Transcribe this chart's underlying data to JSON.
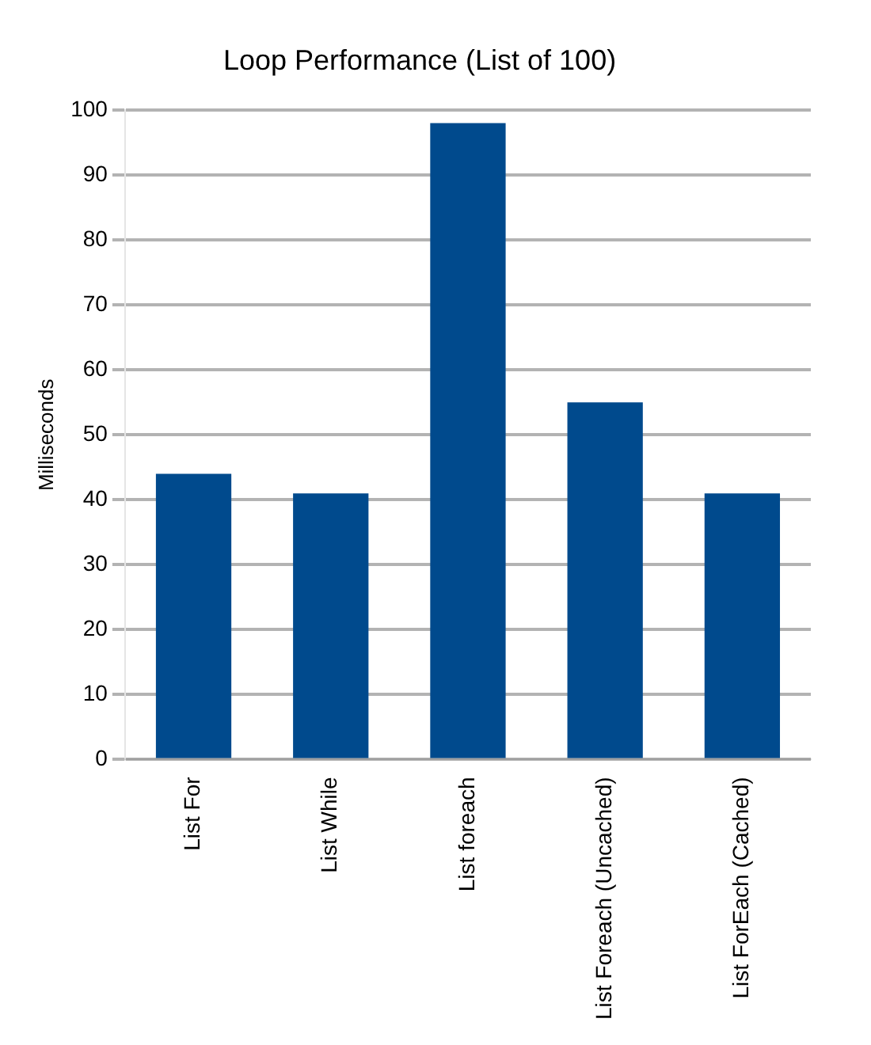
{
  "chart_data": {
    "type": "bar",
    "title": "Loop Performance (List of 100)",
    "ylabel": "Milliseconds",
    "categories": [
      "List For",
      "List While",
      "List foreach",
      "List Foreach (Uncached)",
      "List ForEach (Cached)"
    ],
    "values": [
      44,
      41,
      98,
      55,
      41
    ],
    "color": "#004a8d",
    "ylim": [
      0,
      100
    ],
    "yticks": [
      0,
      10,
      20,
      30,
      40,
      50,
      60,
      70,
      80,
      90,
      100
    ],
    "grid": "y",
    "legend": false
  }
}
